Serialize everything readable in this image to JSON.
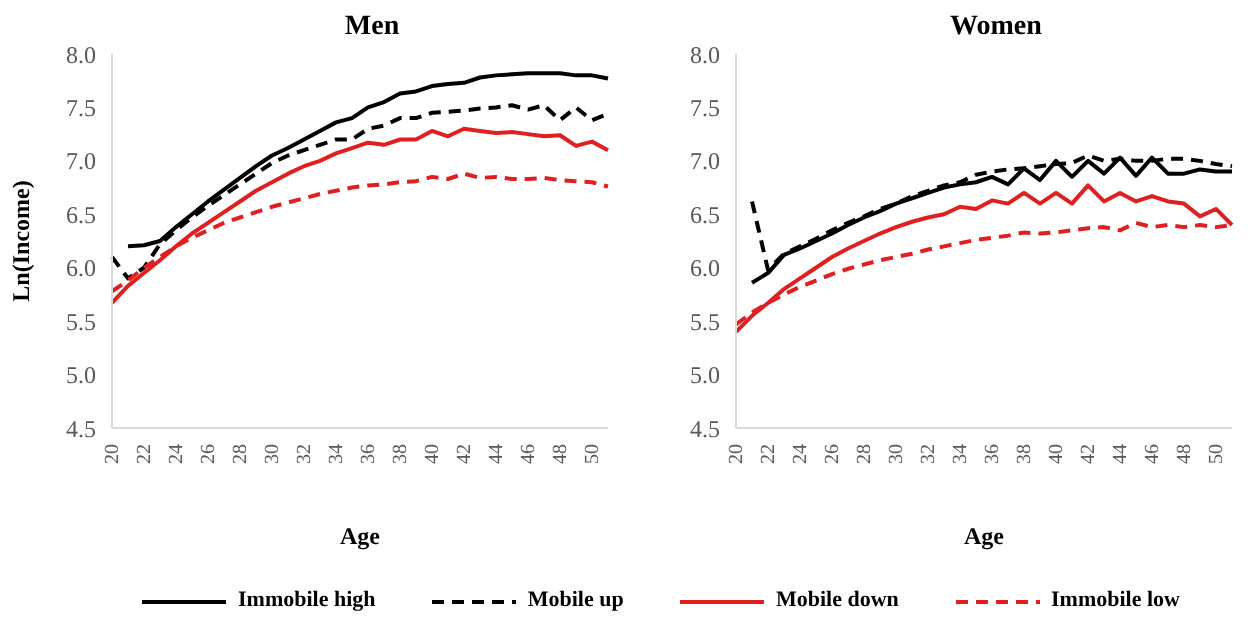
{
  "chart_data": [
    {
      "type": "line",
      "title": "Men",
      "xlabel": "Age",
      "ylabel": "Ln(Income)",
      "categories": [
        "20",
        null,
        "22",
        null,
        "24",
        null,
        "26",
        null,
        "28",
        null,
        "30",
        null,
        "32",
        null,
        "34",
        null,
        "36",
        null,
        "38",
        null,
        "40",
        null,
        "42",
        null,
        "44",
        null,
        "46",
        null,
        "48",
        null,
        "50",
        null
      ],
      "ylim": [
        4.5,
        8.0
      ],
      "yticks": [
        {
          "value": 4.5,
          "label": "4.5"
        },
        {
          "value": 5.0,
          "label": "5.0"
        },
        {
          "value": 5.5,
          "label": "5.5"
        },
        {
          "value": 6.0,
          "label": "6.0"
        },
        {
          "value": 6.5,
          "label": "6.5"
        },
        {
          "value": 7.0,
          "label": "7.0"
        },
        {
          "value": 7.5,
          "label": "7.5"
        },
        {
          "value": 8.0,
          "label": "8.0"
        }
      ],
      "grid": false,
      "legend": "bottom",
      "marker": "none",
      "series": [
        {
          "name": "Immobile high",
          "color": "#000000",
          "line_style": "solid",
          "values": [
            null,
            6.2,
            6.21,
            6.25,
            6.38,
            6.5,
            6.62,
            6.73,
            6.84,
            6.95,
            7.05,
            7.12,
            7.2,
            7.28,
            7.36,
            7.4,
            7.5,
            7.55,
            7.63,
            7.65,
            7.7,
            7.72,
            7.73,
            7.78,
            7.8,
            7.81,
            7.82,
            7.82,
            7.82,
            7.8,
            7.8,
            7.77
          ]
        },
        {
          "name": "Mobile up",
          "color": "#000000",
          "line_style": "dashed",
          "values": [
            6.1,
            5.9,
            6.0,
            6.22,
            6.35,
            6.47,
            6.58,
            6.68,
            6.78,
            6.88,
            6.98,
            7.05,
            7.1,
            7.15,
            7.2,
            7.2,
            7.3,
            7.33,
            7.4,
            7.4,
            7.45,
            7.46,
            7.47,
            7.49,
            7.5,
            7.52,
            7.48,
            7.52,
            7.38,
            7.5,
            7.38,
            7.44
          ]
        },
        {
          "name": "Mobile down",
          "color": "#e02020",
          "line_style": "solid",
          "values": [
            5.67,
            5.83,
            5.95,
            6.07,
            6.2,
            6.32,
            6.42,
            6.52,
            6.62,
            6.72,
            6.8,
            6.88,
            6.95,
            7.0,
            7.07,
            7.12,
            7.17,
            7.15,
            7.2,
            7.2,
            7.28,
            7.23,
            7.3,
            7.28,
            7.26,
            7.27,
            7.25,
            7.23,
            7.24,
            7.14,
            7.18,
            7.1
          ]
        },
        {
          "name": "Immobile low",
          "color": "#e02020",
          "line_style": "dashed",
          "values": [
            5.78,
            5.88,
            6.0,
            6.1,
            6.2,
            6.28,
            6.35,
            6.42,
            6.47,
            6.52,
            6.57,
            6.61,
            6.65,
            6.69,
            6.72,
            6.75,
            6.77,
            6.78,
            6.8,
            6.81,
            6.85,
            6.83,
            6.88,
            6.84,
            6.85,
            6.83,
            6.83,
            6.84,
            6.82,
            6.81,
            6.8,
            6.76
          ]
        }
      ]
    },
    {
      "type": "line",
      "title": "Women",
      "xlabel": "Age",
      "categories": [
        "20",
        null,
        "22",
        null,
        "24",
        null,
        "26",
        null,
        "28",
        null,
        "30",
        null,
        "32",
        null,
        "34",
        null,
        "36",
        null,
        "38",
        null,
        "40",
        null,
        "42",
        null,
        "44",
        null,
        "46",
        null,
        "48",
        null,
        "50",
        null
      ],
      "ylim": [
        4.5,
        8.0
      ],
      "yticks": [
        {
          "value": 4.5,
          "label": "4.5"
        },
        {
          "value": 5.0,
          "label": "5.0"
        },
        {
          "value": 5.5,
          "label": "5.5"
        },
        {
          "value": 6.0,
          "label": "6.0"
        },
        {
          "value": 6.5,
          "label": "6.5"
        },
        {
          "value": 7.0,
          "label": "7.0"
        },
        {
          "value": 7.5,
          "label": "7.5"
        },
        {
          "value": 8.0,
          "label": "8.0"
        }
      ],
      "grid": false,
      "marker": "none",
      "series": [
        {
          "color": "#000000",
          "line_style": "solid",
          "values": [
            null,
            5.86,
            5.95,
            6.12,
            6.18,
            6.25,
            6.32,
            6.4,
            6.47,
            6.53,
            6.6,
            6.65,
            6.7,
            6.75,
            6.78,
            6.8,
            6.85,
            6.78,
            6.93,
            6.82,
            7.0,
            6.85,
            7.0,
            6.88,
            7.03,
            6.86,
            7.03,
            6.88,
            6.88,
            6.92,
            6.9,
            6.9
          ]
        },
        {
          "color": "#000000",
          "line_style": "dashed",
          "values": [
            null,
            6.62,
            5.98,
            6.13,
            6.2,
            6.27,
            6.35,
            6.42,
            6.48,
            6.55,
            6.6,
            6.67,
            6.72,
            6.77,
            6.8,
            6.87,
            6.9,
            6.92,
            6.93,
            6.95,
            6.97,
            6.98,
            7.05,
            7.0,
            7.02,
            7.0,
            7.0,
            7.02,
            7.02,
            7.0,
            6.97,
            6.95
          ]
        },
        {
          "color": "#e02020",
          "line_style": "solid",
          "values": [
            5.4,
            5.55,
            5.67,
            5.8,
            5.9,
            6.0,
            6.1,
            6.18,
            6.25,
            6.32,
            6.38,
            6.43,
            6.47,
            6.5,
            6.57,
            6.55,
            6.63,
            6.6,
            6.7,
            6.6,
            6.7,
            6.6,
            6.77,
            6.62,
            6.7,
            6.62,
            6.67,
            6.62,
            6.6,
            6.48,
            6.55,
            6.4
          ]
        },
        {
          "color": "#e02020",
          "line_style": "dashed",
          "values": [
            5.47,
            5.58,
            5.67,
            5.75,
            5.82,
            5.88,
            5.94,
            5.99,
            6.03,
            6.07,
            6.1,
            6.13,
            6.17,
            6.2,
            6.23,
            6.26,
            6.28,
            6.3,
            6.33,
            6.32,
            6.33,
            6.35,
            6.37,
            6.38,
            6.35,
            6.42,
            6.38,
            6.4,
            6.38,
            6.4,
            6.38,
            6.4
          ]
        }
      ]
    }
  ]
}
